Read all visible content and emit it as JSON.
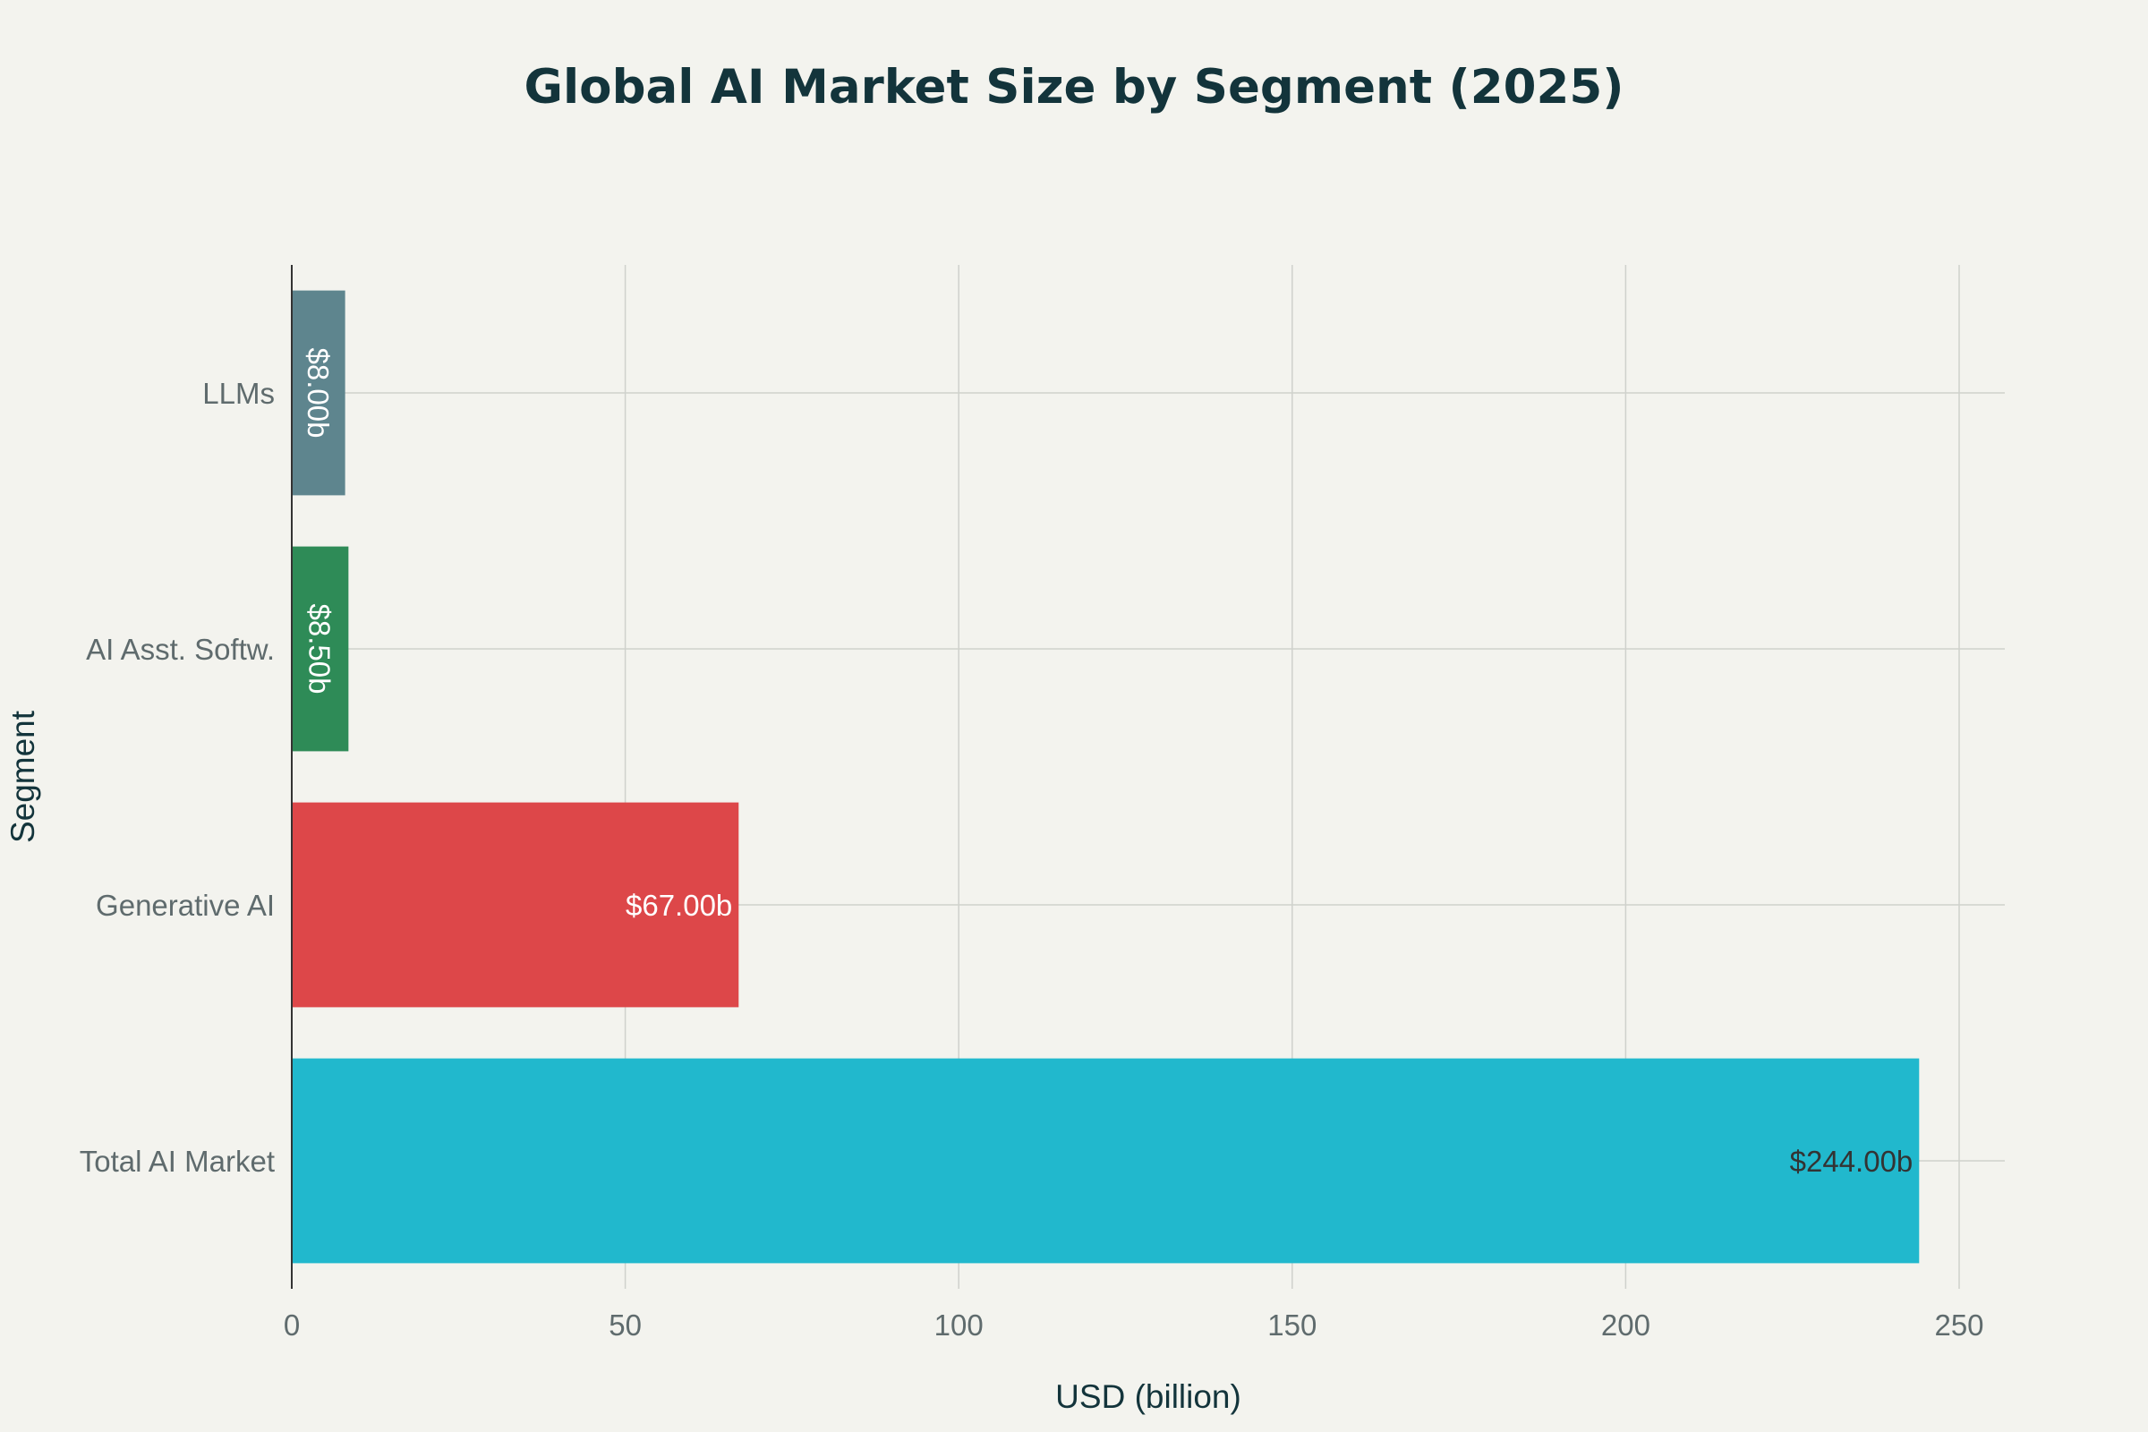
{
  "chart_data": {
    "type": "bar",
    "orientation": "horizontal",
    "title": "Global AI Market Size by Segment (2025)",
    "xlabel": "USD (billion)",
    "ylabel": "Segment",
    "categories": [
      "Total AI Market",
      "Generative AI",
      "AI Asst. Softw.",
      "LLMs"
    ],
    "values": [
      244,
      67,
      8.5,
      8
    ],
    "value_labels": [
      "$244.00b",
      "$67.00b",
      "$8.50b",
      "$8.00b"
    ],
    "colors": [
      "#21b8cd",
      "#dd4749",
      "#2e8b57",
      "#5e858e"
    ],
    "label_colors": [
      "#333333",
      "#ffffff",
      "#ffffff",
      "#ffffff"
    ],
    "xlim": [
      0,
      257
    ],
    "xticks": [
      0,
      50,
      100,
      150,
      200,
      250
    ],
    "grid": true,
    "legend": "none"
  }
}
